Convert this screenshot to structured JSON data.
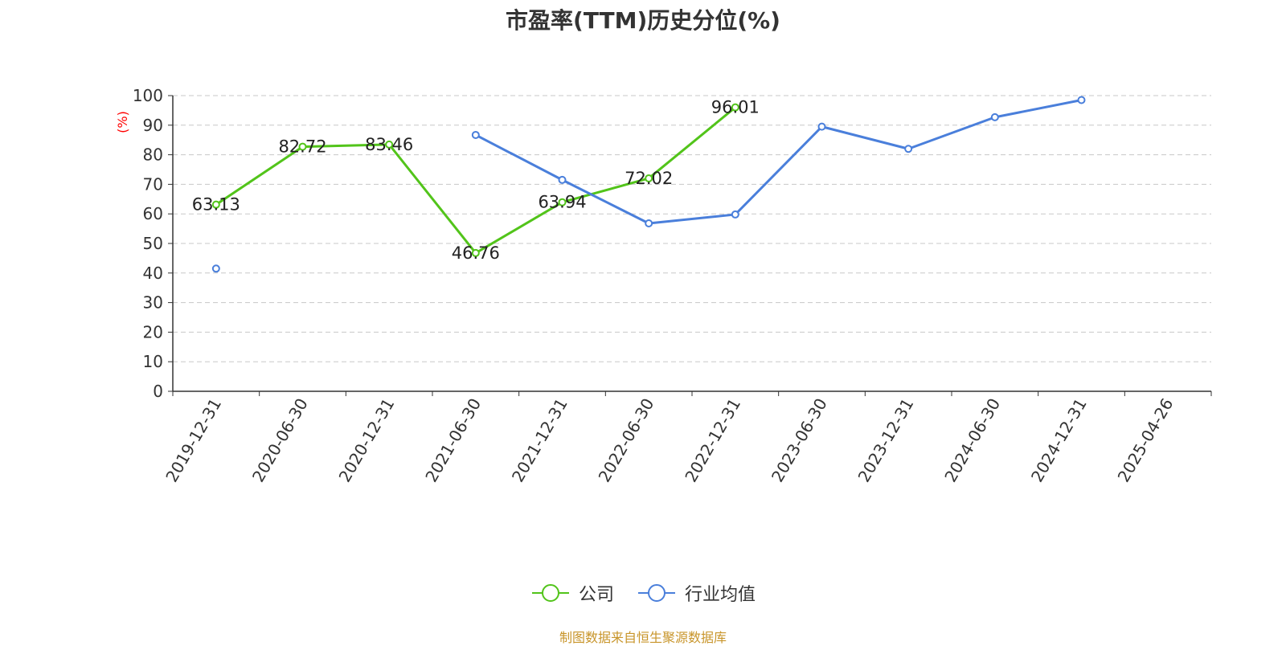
{
  "chart_data": {
    "type": "line",
    "title": "市盈率(TTM)历史分位(%)",
    "ylabel": "(%)",
    "ylim": [
      0,
      100
    ],
    "yticks": [
      0,
      10,
      20,
      30,
      40,
      50,
      60,
      70,
      80,
      90,
      100
    ],
    "categories": [
      "2019-12-31",
      "2020-06-30",
      "2020-12-31",
      "2021-06-30",
      "2021-12-31",
      "2022-06-30",
      "2022-12-31",
      "2023-06-30",
      "2023-12-31",
      "2024-06-30",
      "2024-12-31",
      "2025-04-26"
    ],
    "series": [
      {
        "name": "公司",
        "color": "#52c41a",
        "values": [
          63.13,
          82.72,
          83.46,
          46.76,
          63.94,
          72.02,
          96.01,
          null,
          null,
          null,
          null,
          null
        ],
        "labels": [
          "63.13",
          "82.72",
          "83.46",
          "46.76",
          "63.94",
          "72.02",
          "96.01",
          null,
          null,
          null,
          null,
          null
        ]
      },
      {
        "name": "行业均值",
        "color": "#4a7fdb",
        "values": [
          41.5,
          null,
          null,
          86.7,
          71.5,
          56.8,
          59.8,
          89.5,
          82,
          92.7,
          98.5,
          null
        ],
        "labels": [
          null,
          null,
          null,
          null,
          null,
          null,
          null,
          null,
          null,
          null,
          null,
          null
        ]
      }
    ],
    "grid": "horizontal-dashed",
    "legend_position": "bottom"
  },
  "source": "制图数据来自恒生聚源数据库"
}
